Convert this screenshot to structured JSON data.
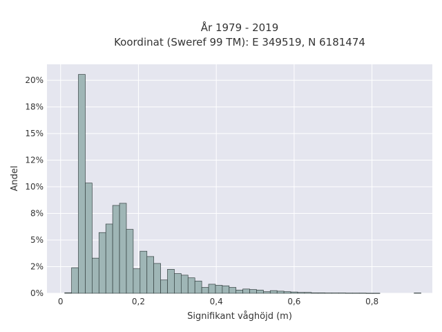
{
  "chart_data": {
    "type": "bar",
    "title_line1": "År 1979 - 2019",
    "title_line2": "Koordinat (Sweref 99 TM): E 349519, N 6181474",
    "xlabel": "Signifikant våghöjd (m)",
    "ylabel": "Andel",
    "xlim": [
      -0.035,
      0.955
    ],
    "ylim": [
      0,
      0.215
    ],
    "x_ticks": [
      0,
      0.2,
      0.4,
      0.6,
      0.8
    ],
    "x_tick_labels": [
      "0",
      "0,2",
      "0,4",
      "0,6",
      "0,8"
    ],
    "y_ticks": [
      0,
      0.025,
      0.05,
      0.075,
      0.1,
      0.125,
      0.15,
      0.175,
      0.2
    ],
    "y_tick_labels": [
      "0%",
      "2%",
      "5%",
      "8%",
      "10%",
      "12%",
      "15%",
      "18%",
      "20%"
    ],
    "grid": true,
    "bin_width": 0.0176,
    "bin_start": 0.0106,
    "values": [
      0.0005,
      0.024,
      0.2055,
      0.1035,
      0.033,
      0.057,
      0.065,
      0.0825,
      0.0845,
      0.06,
      0.023,
      0.0395,
      0.0345,
      0.028,
      0.0125,
      0.0225,
      0.0185,
      0.017,
      0.0145,
      0.0115,
      0.0055,
      0.0085,
      0.0075,
      0.007,
      0.0055,
      0.003,
      0.004,
      0.0035,
      0.003,
      0.0015,
      0.0025,
      0.002,
      0.0015,
      0.0012,
      0.0008,
      0.0008,
      0.0004,
      0.0004,
      0.0003,
      0.0003,
      0.0003,
      0.0002,
      0.0002,
      0.0002,
      0.0001,
      0.0001,
      0.0,
      0.0,
      0.0,
      0.0,
      0.0,
      0.0003
    ],
    "colors": {
      "bar_fill": "#9fb6b6",
      "bar_stroke": "#333f3f",
      "plot_bg": "#e5e6ef",
      "grid": "#ffffff"
    }
  }
}
